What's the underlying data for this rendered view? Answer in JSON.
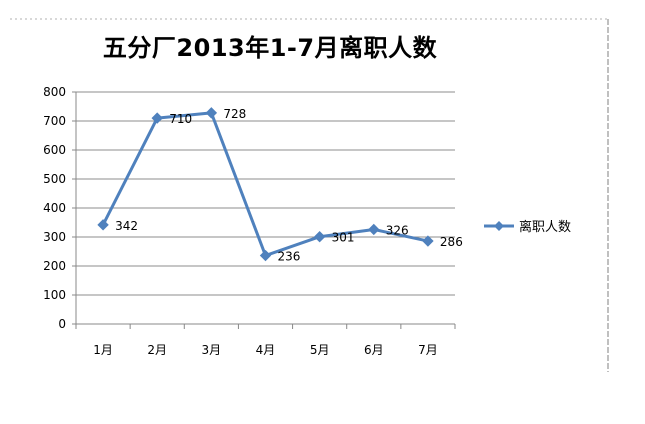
{
  "chart_data": {
    "type": "line",
    "title": "五分厂2013年1-7月离职人数",
    "categories": [
      "1月",
      "2月",
      "3月",
      "4月",
      "5月",
      "6月",
      "7月"
    ],
    "series": [
      {
        "name": "离职人数",
        "values": [
          342,
          710,
          728,
          236,
          301,
          326,
          286
        ],
        "color": "#4F81BD"
      }
    ],
    "xlabel": "",
    "ylabel": "",
    "ylim": [
      0,
      800
    ],
    "yticks": [
      0,
      100,
      200,
      300,
      400,
      500,
      600,
      700,
      800
    ],
    "grid": true,
    "legend": "right",
    "data_labels": true
  }
}
